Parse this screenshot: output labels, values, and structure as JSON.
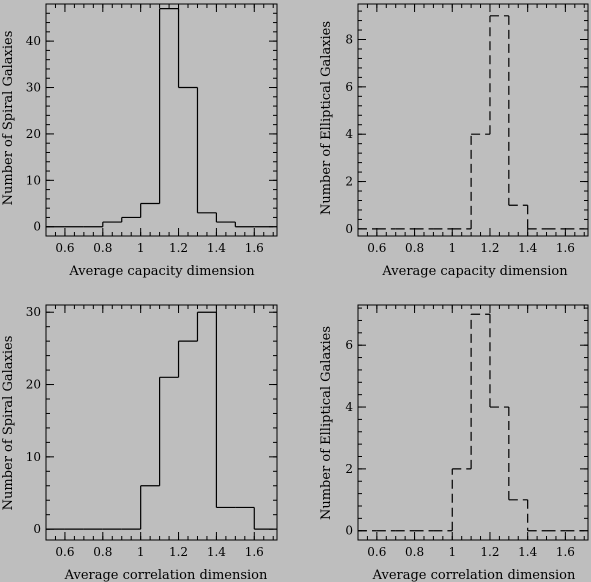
{
  "figure": {
    "background": "#bebebe",
    "line_color": "#000000"
  },
  "chart_data": [
    {
      "type": "step-histogram",
      "line_style": "solid",
      "xlabel": "Average capacity dimension",
      "ylabel": "Number of Spiral Galaxies",
      "xlim": [
        0.5,
        1.72
      ],
      "ylim": [
        -2,
        48
      ],
      "xticks": [
        0.6,
        0.8,
        1,
        1.2,
        1.4,
        1.6
      ],
      "xtick_labels": [
        "0.6",
        "0.8",
        "1",
        "1.2",
        "1.4",
        "1.6"
      ],
      "yticks": [
        0,
        10,
        20,
        30,
        40
      ],
      "ytick_labels": [
        "0",
        "10",
        "20",
        "30",
        "40"
      ],
      "bin_edges": [
        0.5,
        0.6,
        0.7,
        0.8,
        0.9,
        1.0,
        1.1,
        1.2,
        1.3,
        1.4,
        1.5,
        1.6,
        1.7
      ],
      "counts": [
        0,
        0,
        0,
        1,
        2,
        5,
        47,
        30,
        3,
        1,
        0,
        0
      ]
    },
    {
      "type": "step-histogram",
      "line_style": "dashed",
      "xlabel": "Average capacity dimension",
      "ylabel": "Number of Elliptical Galaxies",
      "xlim": [
        0.5,
        1.72
      ],
      "ylim": [
        -0.3,
        9.5
      ],
      "xticks": [
        0.6,
        0.8,
        1,
        1.2,
        1.4,
        1.6
      ],
      "xtick_labels": [
        "0.6",
        "0.8",
        "1",
        "1.2",
        "1.4",
        "1.6"
      ],
      "yticks": [
        0,
        2,
        4,
        6,
        8
      ],
      "ytick_labels": [
        "0",
        "2",
        "4",
        "6",
        "8"
      ],
      "bin_edges": [
        0.5,
        0.6,
        0.7,
        0.8,
        0.9,
        1.0,
        1.1,
        1.2,
        1.3,
        1.4,
        1.5,
        1.6,
        1.7
      ],
      "counts": [
        0,
        0,
        0,
        0,
        0,
        0,
        4,
        9,
        1,
        0,
        0,
        0
      ]
    },
    {
      "type": "step-histogram",
      "line_style": "solid",
      "xlabel": "Average correlation dimension",
      "ylabel": "Number of Spiral Galaxies",
      "xlim": [
        0.5,
        1.72
      ],
      "ylim": [
        -1.5,
        31
      ],
      "xticks": [
        0.6,
        0.8,
        1,
        1.2,
        1.4,
        1.6
      ],
      "xtick_labels": [
        "0.6",
        "0.8",
        "1",
        "1.2",
        "1.4",
        "1.6"
      ],
      "yticks": [
        0,
        10,
        20,
        30
      ],
      "ytick_labels": [
        "0",
        "10",
        "20",
        "30"
      ],
      "bin_edges": [
        0.5,
        0.6,
        0.7,
        0.8,
        0.9,
        1.0,
        1.1,
        1.2,
        1.3,
        1.4,
        1.5,
        1.6,
        1.7
      ],
      "counts": [
        0,
        0,
        0,
        0,
        0,
        6,
        21,
        26,
        30,
        3,
        3,
        0
      ]
    },
    {
      "type": "step-histogram",
      "line_style": "dashed",
      "xlabel": "Average correlation dimension",
      "ylabel": "Number of Elliptical Galaxies",
      "xlim": [
        0.5,
        1.72
      ],
      "ylim": [
        -0.3,
        7.3
      ],
      "xticks": [
        0.6,
        0.8,
        1,
        1.2,
        1.4,
        1.6
      ],
      "xtick_labels": [
        "0.6",
        "0.8",
        "1",
        "1.2",
        "1.4",
        "1.6"
      ],
      "yticks": [
        0,
        2,
        4,
        6
      ],
      "ytick_labels": [
        "0",
        "2",
        "4",
        "6"
      ],
      "bin_edges": [
        0.5,
        0.6,
        0.7,
        0.8,
        0.9,
        1.0,
        1.1,
        1.2,
        1.3,
        1.4,
        1.5,
        1.6,
        1.7
      ],
      "counts": [
        0,
        0,
        0,
        0,
        0,
        2,
        7,
        4,
        1,
        0,
        0,
        0
      ]
    }
  ]
}
